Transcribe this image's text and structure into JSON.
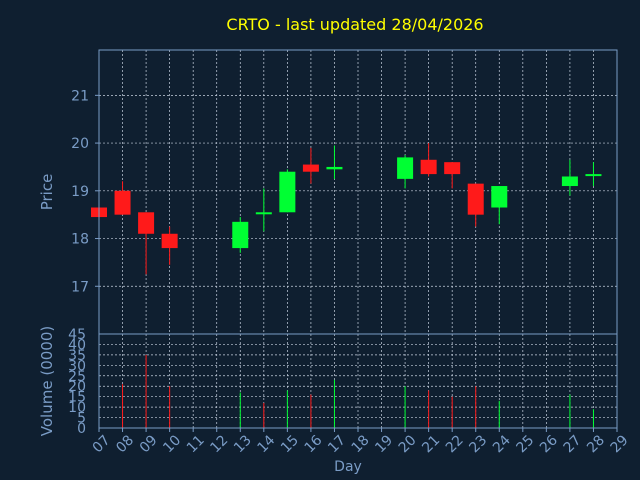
{
  "title": "CRTO - last updated 28/04/2026",
  "colors": {
    "background": "#0f1f30",
    "title": "#ffff00",
    "axis_text": "#7a9cc6",
    "frame": "#7a9cc6",
    "grid": "#c8d2e0",
    "up": "#00ff33",
    "down": "#ff1a1a"
  },
  "chart_data": [
    {
      "type": "candlestick",
      "ylabel": "Price",
      "ylim": [
        16.0,
        21.95
      ],
      "yticks": [
        17,
        18,
        19,
        20,
        21
      ],
      "x_range": [
        7,
        29
      ],
      "grid": true,
      "candles": [
        {
          "day": 7,
          "open": 18.65,
          "high": 18.65,
          "low": 18.45,
          "close": 18.45
        },
        {
          "day": 8,
          "open": 19.0,
          "high": 19.2,
          "low": 18.5,
          "close": 18.5
        },
        {
          "day": 9,
          "open": 18.55,
          "high": 18.55,
          "low": 17.25,
          "close": 18.1
        },
        {
          "day": 10,
          "open": 18.1,
          "high": 18.25,
          "low": 17.45,
          "close": 17.8
        },
        {
          "day": 13,
          "open": 17.8,
          "high": 18.45,
          "low": 17.7,
          "close": 18.35
        },
        {
          "day": 14,
          "open": 18.55,
          "high": 19.05,
          "low": 18.15,
          "close": 18.55
        },
        {
          "day": 15,
          "open": 18.55,
          "high": 19.45,
          "low": 18.55,
          "close": 19.4
        },
        {
          "day": 16,
          "open": 19.55,
          "high": 19.9,
          "low": 19.15,
          "close": 19.4
        },
        {
          "day": 17,
          "open": 19.45,
          "high": 19.95,
          "low": 19.25,
          "close": 19.5
        },
        {
          "day": 20,
          "open": 19.25,
          "high": 19.75,
          "low": 19.05,
          "close": 19.7
        },
        {
          "day": 21,
          "open": 19.65,
          "high": 20.0,
          "low": 19.3,
          "close": 19.35
        },
        {
          "day": 22,
          "open": 19.6,
          "high": 19.6,
          "low": 19.05,
          "close": 19.35
        },
        {
          "day": 23,
          "open": 19.15,
          "high": 19.15,
          "low": 18.25,
          "close": 18.5
        },
        {
          "day": 24,
          "open": 18.65,
          "high": 19.1,
          "low": 18.3,
          "close": 19.1
        },
        {
          "day": 27,
          "open": 19.1,
          "high": 19.65,
          "low": 18.9,
          "close": 19.3
        },
        {
          "day": 28,
          "open": 19.35,
          "high": 19.6,
          "low": 19.1,
          "close": 19.35
        }
      ]
    },
    {
      "type": "bar",
      "ylabel": "Volume (0000)",
      "ylim": [
        0,
        45
      ],
      "yticks": [
        0,
        5,
        10,
        15,
        20,
        25,
        30,
        35,
        40,
        45
      ],
      "xlabel": "Day",
      "xticks": [
        "07",
        "08",
        "09",
        "10",
        "11",
        "12",
        "13",
        "14",
        "15",
        "16",
        "17",
        "18",
        "19",
        "20",
        "21",
        "22",
        "23",
        "24",
        "25",
        "26",
        "27",
        "28",
        "29"
      ],
      "bars": [
        {
          "day": 8,
          "value": 21,
          "direction": "down"
        },
        {
          "day": 9,
          "value": 35,
          "direction": "down"
        },
        {
          "day": 10,
          "value": 20,
          "direction": "down"
        },
        {
          "day": 13,
          "value": 17,
          "direction": "up"
        },
        {
          "day": 14,
          "value": 12,
          "direction": "down"
        },
        {
          "day": 15,
          "value": 18,
          "direction": "up"
        },
        {
          "day": 16,
          "value": 16,
          "direction": "down"
        },
        {
          "day": 17,
          "value": 23,
          "direction": "up"
        },
        {
          "day": 20,
          "value": 20,
          "direction": "up"
        },
        {
          "day": 21,
          "value": 18,
          "direction": "down"
        },
        {
          "day": 22,
          "value": 15,
          "direction": "down"
        },
        {
          "day": 23,
          "value": 20,
          "direction": "down"
        },
        {
          "day": 24,
          "value": 13,
          "direction": "up"
        },
        {
          "day": 27,
          "value": 16,
          "direction": "up"
        },
        {
          "day": 28,
          "value": 9,
          "direction": "up"
        }
      ]
    }
  ]
}
